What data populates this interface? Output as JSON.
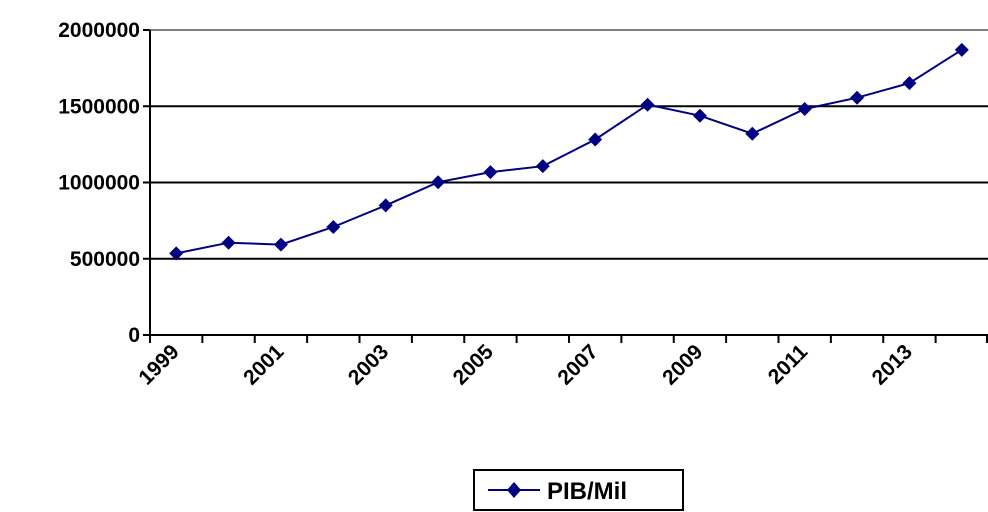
{
  "chart_data": {
    "type": "line",
    "x": [
      "1999",
      "2000",
      "2001",
      "2002",
      "2003",
      "2004",
      "2005",
      "2006",
      "2007",
      "2008",
      "2009",
      "2010",
      "2011",
      "2012",
      "2013",
      "2014"
    ],
    "x_tick_labels": [
      "1999",
      "2001",
      "2003",
      "2005",
      "2007",
      "2009",
      "2011",
      "2013"
    ],
    "series": [
      {
        "name": "PIB/Mil",
        "values": [
          535000,
          605000,
          593000,
          708000,
          850000,
          1002000,
          1068000,
          1107000,
          1282000,
          1510000,
          1438000,
          1320000,
          1482000,
          1556000,
          1652000,
          1870000
        ]
      }
    ],
    "y_ticks": [
      0,
      500000,
      1000000,
      1500000,
      2000000
    ],
    "y_tick_labels": [
      "0",
      "500000",
      "1000000",
      "1500000",
      "2000000"
    ],
    "ylim": [
      0,
      2000000
    ],
    "grid": true,
    "legend": "bottom-center",
    "title": "",
    "xlabel": "",
    "ylabel": "",
    "colors": {
      "series": "#000080",
      "grid": "#000000",
      "axis": "#000000"
    }
  }
}
